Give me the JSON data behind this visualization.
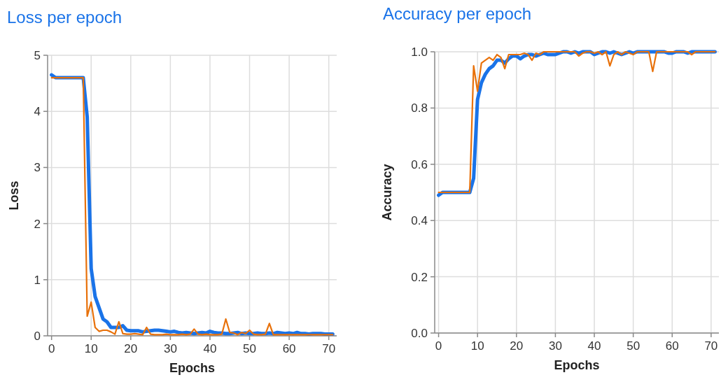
{
  "chart_data": [
    {
      "type": "line",
      "title": "Loss per epoch",
      "xlabel": "Epochs",
      "ylabel": "Loss",
      "x": [
        0,
        1,
        2,
        3,
        4,
        5,
        6,
        7,
        8,
        9,
        10,
        11,
        12,
        13,
        14,
        15,
        16,
        17,
        18,
        19,
        20,
        21,
        22,
        23,
        24,
        25,
        26,
        27,
        28,
        29,
        30,
        31,
        32,
        33,
        34,
        35,
        36,
        37,
        38,
        39,
        40,
        41,
        42,
        43,
        44,
        45,
        46,
        47,
        48,
        49,
        50,
        51,
        52,
        53,
        54,
        55,
        56,
        57,
        58,
        59,
        60,
        61,
        62,
        63,
        64,
        65,
        66,
        67,
        68,
        69,
        70,
        71
      ],
      "xlim": [
        -1,
        72
      ],
      "xticks": [
        0,
        10,
        20,
        30,
        40,
        50,
        60,
        70
      ],
      "ylim": [
        0,
        5
      ],
      "yticks": [
        0,
        1,
        2,
        3,
        4,
        5
      ],
      "grid": true,
      "line_style": "solid",
      "marker": "none",
      "series": [
        {
          "color": "#1a73e8",
          "values": [
            4.65,
            4.6,
            4.6,
            4.6,
            4.6,
            4.6,
            4.6,
            4.6,
            4.6,
            3.9,
            1.2,
            0.7,
            0.5,
            0.3,
            0.25,
            0.15,
            0.15,
            0.15,
            0.18,
            0.1,
            0.09,
            0.09,
            0.09,
            0.07,
            0.08,
            0.09,
            0.1,
            0.1,
            0.09,
            0.08,
            0.07,
            0.08,
            0.06,
            0.05,
            0.06,
            0.05,
            0.04,
            0.05,
            0.06,
            0.05,
            0.08,
            0.06,
            0.05,
            0.05,
            0.04,
            0.04,
            0.05,
            0.06,
            0.04,
            0.05,
            0.04,
            0.04,
            0.05,
            0.04,
            0.04,
            0.05,
            0.04,
            0.06,
            0.05,
            0.04,
            0.05,
            0.04,
            0.06,
            0.04,
            0.04,
            0.03,
            0.04,
            0.04,
            0.04,
            0.03,
            0.03,
            0.03
          ]
        },
        {
          "color": "#e8710a",
          "values": [
            4.6,
            4.6,
            4.6,
            4.6,
            4.6,
            4.6,
            4.6,
            4.6,
            4.6,
            0.35,
            0.6,
            0.15,
            0.08,
            0.1,
            0.1,
            0.07,
            0.03,
            0.25,
            0.04,
            0.03,
            0.03,
            0.04,
            0.03,
            0.02,
            0.15,
            0.03,
            0.02,
            0.02,
            0.02,
            0.03,
            0.02,
            0.02,
            0.02,
            0.03,
            0.02,
            0.03,
            0.12,
            0.03,
            0.02,
            0.03,
            0.02,
            0.02,
            0.02,
            0.03,
            0.3,
            0.06,
            0.05,
            0.02,
            0.06,
            0.04,
            0.1,
            0.03,
            0.02,
            0.02,
            0.03,
            0.22,
            0.02,
            0.02,
            0.02,
            0.02,
            0.02,
            0.02,
            0.02,
            0.02,
            0.02,
            0.02,
            0.02,
            0.02,
            0.02,
            0.02,
            0.02,
            0.02
          ]
        }
      ]
    },
    {
      "type": "line",
      "title": "Accuracy per epoch",
      "xlabel": "Epochs",
      "ylabel": "Accuracy",
      "x": [
        0,
        1,
        2,
        3,
        4,
        5,
        6,
        7,
        8,
        9,
        10,
        11,
        12,
        13,
        14,
        15,
        16,
        17,
        18,
        19,
        20,
        21,
        22,
        23,
        24,
        25,
        26,
        27,
        28,
        29,
        30,
        31,
        32,
        33,
        34,
        35,
        36,
        37,
        38,
        39,
        40,
        41,
        42,
        43,
        44,
        45,
        46,
        47,
        48,
        49,
        50,
        51,
        52,
        53,
        54,
        55,
        56,
        57,
        58,
        59,
        60,
        61,
        62,
        63,
        64,
        65,
        66,
        67,
        68,
        69,
        70,
        71
      ],
      "xlim": [
        -1,
        72
      ],
      "xticks": [
        0,
        10,
        20,
        30,
        40,
        50,
        60,
        70
      ],
      "ylim": [
        0,
        1
      ],
      "yticks": [
        {
          "value": 0,
          "label": "0.0"
        },
        0.2,
        0.4,
        0.6,
        0.8,
        {
          "value": 1,
          "label": "1.0"
        }
      ],
      "grid": true,
      "line_style": "solid",
      "marker": "none",
      "series": [
        {
          "color": "#1a73e8",
          "values": [
            0.49,
            0.5,
            0.5,
            0.5,
            0.5,
            0.5,
            0.5,
            0.5,
            0.5,
            0.55,
            0.83,
            0.89,
            0.92,
            0.94,
            0.95,
            0.97,
            0.97,
            0.96,
            0.975,
            0.985,
            0.985,
            0.975,
            0.985,
            0.99,
            0.99,
            0.985,
            0.99,
            0.995,
            0.99,
            0.99,
            0.99,
            0.995,
            1,
            1,
            0.995,
            1,
            0.995,
            1,
            1,
            1,
            0.99,
            0.995,
            1,
            1,
            0.995,
            1,
            0.995,
            0.99,
            0.995,
            1,
            0.995,
            1,
            1,
            1,
            1,
            1,
            1,
            1,
            1,
            0.995,
            0.995,
            1,
            1,
            1,
            0.995,
            1,
            1,
            1,
            1,
            1,
            1,
            1
          ]
        },
        {
          "color": "#e8710a",
          "values": [
            0.5,
            0.5,
            0.5,
            0.5,
            0.5,
            0.5,
            0.5,
            0.5,
            0.5,
            0.95,
            0.86,
            0.96,
            0.97,
            0.98,
            0.97,
            0.99,
            0.98,
            0.94,
            0.99,
            0.99,
            0.99,
            0.99,
            0.995,
            0.99,
            0.97,
            0.995,
            0.99,
            1,
            1,
            1,
            1,
            1,
            1,
            1,
            1,
            1,
            0.985,
            0.995,
            1,
            1,
            0.995,
            1,
            0.99,
            1,
            0.95,
            0.99,
            1,
            0.99,
            1,
            0.995,
            0.99,
            1,
            1,
            1,
            1,
            0.93,
            1,
            1,
            1,
            1,
            1,
            1,
            1,
            1,
            1,
            0.99,
            1,
            1,
            1,
            1,
            1,
            1
          ]
        }
      ]
    }
  ]
}
